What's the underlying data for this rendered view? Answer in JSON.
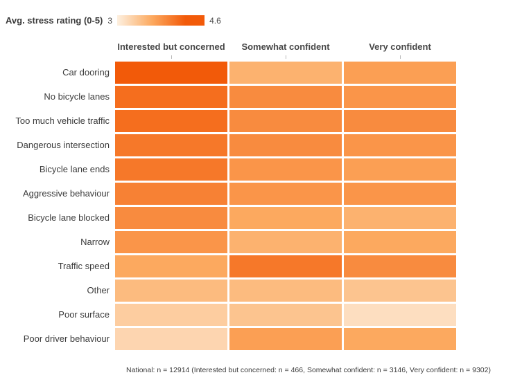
{
  "legend": {
    "title": "Avg. stress rating (0-5)",
    "min_label": "3",
    "max_label": "4.6"
  },
  "footer": {
    "caption": "National: n = 12914 (Interested but concerned: n = 466, Somewhat confident: n = 3146, Very confident: n = 9302)"
  },
  "chart_data": {
    "type": "heatmap",
    "title": "Avg. stress rating (0-5)",
    "legend_position": "top-left",
    "columns": [
      "Interested but concerned",
      "Somewhat confident",
      "Very confident"
    ],
    "rows": [
      "Car dooring",
      "No bicycle lanes",
      "Too much vehicle traffic",
      "Dangerous intersection",
      "Bicycle lane ends",
      "Aggressive behaviour",
      "Bicycle lane blocked",
      "Narrow",
      "Traffic speed",
      "Other",
      "Poor surface",
      "Poor driver behaviour"
    ],
    "values": [
      [
        4.6,
        3.7,
        3.9
      ],
      [
        4.4,
        4.1,
        4.0
      ],
      [
        4.4,
        4.1,
        4.1
      ],
      [
        4.3,
        4.1,
        4.0
      ],
      [
        4.3,
        4.0,
        3.9
      ],
      [
        4.2,
        4.0,
        4.0
      ],
      [
        4.1,
        3.8,
        3.7
      ],
      [
        4.0,
        3.7,
        3.8
      ],
      [
        3.8,
        4.3,
        4.1
      ],
      [
        3.6,
        3.6,
        3.5
      ],
      [
        3.4,
        3.5,
        3.2
      ],
      [
        3.3,
        3.9,
        3.8
      ]
    ],
    "scale": {
      "min": 3,
      "max": 4.6,
      "colors": [
        "#fdf0e0",
        "#fca95f",
        "#f25a09"
      ]
    }
  }
}
